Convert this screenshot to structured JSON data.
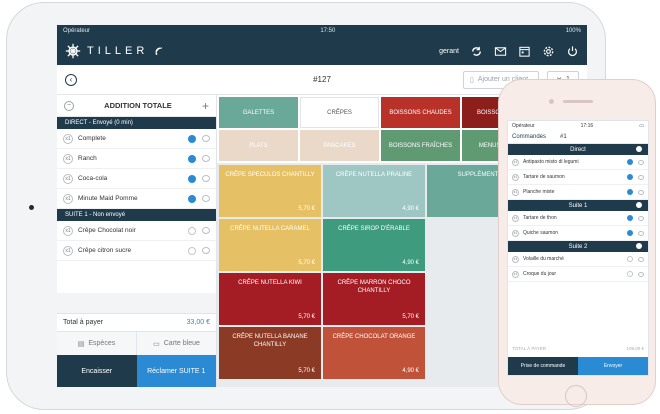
{
  "ipad": {
    "status": {
      "carrier": "Opérateur",
      "time": "17:50",
      "battery": "100%"
    },
    "nav": {
      "brand": "TILLER",
      "user": "gerant"
    },
    "subbar": {
      "order": "#127",
      "client_placeholder": "Ajouter un client",
      "covers": "1"
    },
    "addition": {
      "title": "ADDITION TOTALE",
      "sections": [
        {
          "label": "DIRECT - Envoyé (0 min)",
          "items": [
            {
              "qty": "x1",
              "name": "Complete",
              "checked": true
            },
            {
              "qty": "x1",
              "name": "Ranch",
              "checked": true
            },
            {
              "qty": "x1",
              "name": "Coca-cola",
              "checked": true
            },
            {
              "qty": "x1",
              "name": "Minute Maid Pomme",
              "checked": true
            }
          ]
        },
        {
          "label": "SUITE 1 - Non envoyé",
          "items": [
            {
              "qty": "x1",
              "name": "Crêpe Chocolat noir",
              "checked": false
            },
            {
              "qty": "x1",
              "name": "Crêpe citron sucre",
              "checked": false
            }
          ]
        }
      ],
      "total_label": "Total à payer",
      "total_value": "33,00 €",
      "pay_cash": "Espèces",
      "pay_card": "Carte bleue",
      "encaisser": "Encaisser",
      "reclamer": "Réclamer SUITE 1"
    },
    "categories": [
      {
        "label": "GALETTES",
        "color": "#6aa89a",
        "light": false
      },
      {
        "label": "CRÊPES",
        "color": "#ffffff",
        "light": true
      },
      {
        "label": "BOISSONS CHAUDES",
        "color": "#b8322a",
        "light": false
      },
      {
        "label": "BOISSONS ALCO",
        "color": "#8c1f1c",
        "light": false
      },
      {
        "label": "PLATS",
        "color": "#ead9c8",
        "light": false
      },
      {
        "label": "PANCAKES",
        "color": "#ead9c8",
        "light": false
      },
      {
        "label": "BOISSONS FRAÎCHES",
        "color": "#5f9a73",
        "light": false
      },
      {
        "label": "MENUS & DESS",
        "color": "#5f9a73",
        "light": false
      }
    ],
    "products": [
      {
        "name": "CRÊPE SPECULOS CHANTILLY",
        "price": "5,70 €",
        "color": "#e6c064"
      },
      {
        "name": "CRÊPE NUTELLA PRALINE",
        "price": "4,90 €",
        "color": "#9ec7c4"
      },
      {
        "name": "SUPPLÉMENT",
        "price": "",
        "color": "#6aa89a"
      },
      {
        "name": "CRÊPE NUTELLA CARAMEL",
        "price": "5,70 €",
        "color": "#e6c064"
      },
      {
        "name": "CRÊPE SIROP D'ÉRABLE",
        "price": "4,90 €",
        "color": "#3f9b7e"
      },
      {
        "name": "CRÊPE NUTELLA KIWI",
        "price": "5,70 €",
        "color": "#a51d24"
      },
      {
        "name": "CRÊPE MARRON CHOCO CHANTILLY",
        "price": "5,70 €",
        "color": "#a51d24"
      },
      {
        "name": "CRÊPE NUTELLA BANANE CHANTILLY",
        "price": "5,70 €",
        "color": "#8a3a25"
      },
      {
        "name": "CRÊPE CHOCOLAT ORANGE",
        "price": "4,90 €",
        "color": "#c0523a"
      }
    ]
  },
  "iphone": {
    "status": {
      "carrier": "Opérateur",
      "time": "17:16"
    },
    "nav": {
      "back": "Commandes",
      "num": "#1"
    },
    "sections": [
      {
        "label": "Direct",
        "items": [
          {
            "qty": "x1",
            "name": "Antipasto misto di legumi",
            "checked": true
          },
          {
            "qty": "x1",
            "name": "Tartare de saumon",
            "checked": true
          },
          {
            "qty": "x1",
            "name": "Planche mixte",
            "checked": true
          }
        ]
      },
      {
        "label": "Suite 1",
        "items": [
          {
            "qty": "x1",
            "name": "Tartare de thon",
            "checked": true
          },
          {
            "qty": "x1",
            "name": "Quiche saumon",
            "checked": true
          }
        ]
      },
      {
        "label": "Suite 2",
        "items": [
          {
            "qty": "x1",
            "name": "Volaille du marché",
            "checked": false
          },
          {
            "qty": "x1",
            "name": "Croque du jour",
            "checked": false
          }
        ]
      }
    ],
    "total_label": "TOTAL À PAYER",
    "total_value": "109,00 €",
    "btn_left": "Prise de commande",
    "btn_right": "Envoyer"
  },
  "colors": {
    "navy": "#1f3b4b",
    "blue": "#2a8ad4"
  }
}
